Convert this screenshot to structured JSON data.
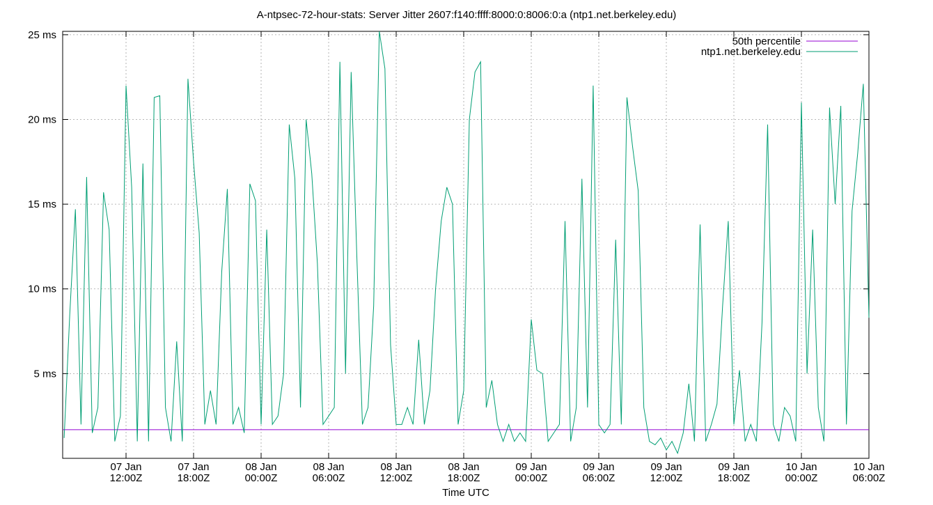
{
  "chart_data": {
    "type": "line",
    "title": "A-ntpsec-72-hour-stats: Server Jitter 2607:f140:ffff:8000:0:8006:0:a (ntp1.net.berkeley.edu)",
    "xlabel": "Time UTC",
    "xlim": [
      6.37,
      78
    ],
    "ylim": [
      0,
      25.2
    ],
    "xticks": [
      {
        "value": 12,
        "label": "07 Jan\n12:00Z"
      },
      {
        "value": 18,
        "label": "07 Jan\n18:00Z"
      },
      {
        "value": 24,
        "label": "08 Jan\n00:00Z"
      },
      {
        "value": 30,
        "label": "08 Jan\n06:00Z"
      },
      {
        "value": 36,
        "label": "08 Jan\n12:00Z"
      },
      {
        "value": 42,
        "label": "08 Jan\n18:00Z"
      },
      {
        "value": 48,
        "label": "09 Jan\n00:00Z"
      },
      {
        "value": 54,
        "label": "09 Jan\n06:00Z"
      },
      {
        "value": 60,
        "label": "09 Jan\n12:00Z"
      },
      {
        "value": 66,
        "label": "09 Jan\n18:00Z"
      },
      {
        "value": 72,
        "label": "10 Jan\n00:00Z"
      },
      {
        "value": 78,
        "label": "10 Jan\n06:00Z"
      }
    ],
    "yticks": [
      {
        "value": 5,
        "label": "5 ms"
      },
      {
        "value": 10,
        "label": "10 ms"
      },
      {
        "value": 15,
        "label": "15 ms"
      },
      {
        "value": 20,
        "label": "20 ms"
      },
      {
        "value": 25,
        "label": "25 ms"
      }
    ],
    "grid": true,
    "legend": "top-right",
    "series": [
      {
        "name": "50th percentile",
        "color": "#9400d3",
        "x": [
          6.37,
          78
        ],
        "values": [
          1.69,
          1.69
        ]
      },
      {
        "name": "ntp1.net.berkeley.edu",
        "color": "#009e73",
        "x": [
          6.5,
          7,
          7.5,
          8,
          8.5,
          9,
          9.5,
          10,
          10.5,
          11,
          11.5,
          12,
          12.5,
          13,
          13.5,
          14,
          14.5,
          15,
          15.5,
          16,
          16.5,
          17,
          17.5,
          18,
          18.5,
          19,
          19.5,
          20,
          20.5,
          21,
          21.5,
          22,
          22.5,
          23,
          23.5,
          24,
          24.5,
          25,
          25.5,
          26,
          26.5,
          27,
          27.5,
          28,
          28.5,
          29,
          29.5,
          30,
          30.5,
          31,
          31.5,
          32,
          32.5,
          33,
          33.5,
          34,
          34.5,
          35,
          35.5,
          36,
          36.5,
          37,
          37.5,
          38,
          38.5,
          39,
          39.5,
          40,
          40.5,
          41,
          41.5,
          42,
          42.5,
          43,
          43.5,
          44,
          44.5,
          45,
          45.5,
          46,
          46.5,
          47,
          47.5,
          48,
          48.5,
          49,
          49.5,
          50,
          50.5,
          51,
          51.5,
          52,
          52.5,
          53,
          53.5,
          54,
          54.5,
          55,
          55.5,
          56,
          56.5,
          57,
          57.5,
          58,
          58.5,
          59,
          59.5,
          60,
          60.5,
          61,
          61.5,
          62,
          62.5,
          63,
          63.5,
          64,
          64.5,
          65,
          65.5,
          66,
          66.5,
          67,
          67.5,
          68,
          68.5,
          69,
          69.5,
          70,
          70.5,
          71,
          71.5,
          72,
          72.5,
          73,
          73.5,
          74,
          74.5,
          75,
          75.5,
          76,
          76.5,
          77,
          77.5,
          78
        ],
        "values": [
          1.2,
          8.5,
          14.7,
          2,
          16.6,
          1.5,
          3,
          15.7,
          13.5,
          1,
          2.5,
          22,
          16,
          1,
          17.4,
          1,
          21.3,
          21.4,
          3,
          1,
          6.9,
          1,
          22.4,
          17.5,
          13.3,
          2,
          4,
          2,
          11,
          15.9,
          2,
          3,
          1.5,
          16.2,
          15.2,
          2,
          13.5,
          2,
          2.5,
          5,
          19.7,
          16.5,
          3,
          20,
          16.8,
          11.5,
          2,
          2.5,
          3,
          23.4,
          5,
          22.8,
          12,
          2,
          3,
          9,
          25.2,
          23,
          6.7,
          2,
          2,
          3,
          2,
          7,
          2,
          4,
          10,
          14,
          16,
          15,
          2,
          4,
          20,
          22.8,
          23.4,
          3,
          4.6,
          2,
          1,
          2,
          1,
          1.5,
          1,
          8.2,
          5.2,
          5,
          1,
          1.5,
          2,
          14,
          1,
          3,
          16.5,
          3,
          22,
          2,
          1.5,
          2,
          12.9,
          2,
          21.3,
          18.4,
          15.8,
          3,
          1,
          0.8,
          1.2,
          0.5,
          1,
          0.3,
          1.5,
          4.4,
          1,
          13.8,
          1,
          2,
          3.2,
          9,
          14,
          2,
          5.2,
          1,
          2,
          1,
          8,
          19.7,
          2,
          1,
          3,
          2.5,
          1,
          21,
          5,
          13.5,
          3,
          1,
          20.7,
          15,
          20.8,
          2,
          14.6,
          18,
          22.1,
          8.3
        ]
      }
    ]
  }
}
